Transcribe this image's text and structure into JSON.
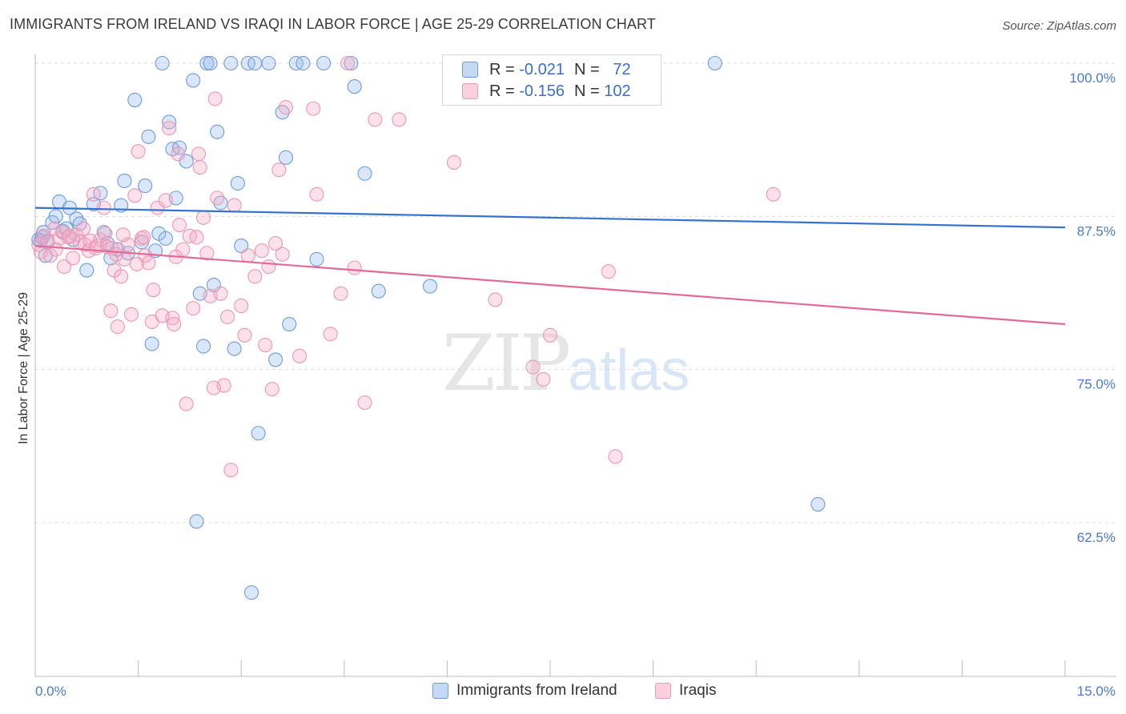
{
  "title": "IMMIGRANTS FROM IRELAND VS IRAQI IN LABOR FORCE | AGE 25-29 CORRELATION CHART",
  "source": "Source: ZipAtlas.com",
  "watermark": {
    "zip": "ZIP",
    "atlas": "atlas"
  },
  "legend": {
    "rows": [
      {
        "r_label": "R =",
        "r_value": "-0.021",
        "n_label": "N =",
        "n_value": "72"
      },
      {
        "r_label": "R =",
        "r_value": "-0.156",
        "n_label": "N =",
        "n_value": "102"
      }
    ]
  },
  "bottom_legend": [
    "Immigrants from Ireland",
    "Iraqis"
  ],
  "colors": {
    "ireland_fill": "rgba(150,185,235,0.35)",
    "ireland_stroke": "#6f9bdc",
    "ireland_line": "#3572d0",
    "iraqi_fill": "rgba(245,170,195,0.35)",
    "iraqi_stroke": "#ec97b4",
    "iraqi_line": "#e36a98",
    "grid": "#dddddd",
    "tick_text": "#4a7bd0"
  },
  "chart_data": {
    "type": "scatter",
    "title": "IMMIGRANTS FROM IRELAND VS IRAQI IN LABOR FORCE | AGE 25-29 CORRELATION CHART",
    "xlabel": "",
    "ylabel": "In Labor Force | Age 25-29",
    "xlim": [
      0,
      15
    ],
    "ylim": [
      53,
      102
    ],
    "x_tick_labels": [
      "0.0%",
      "15.0%"
    ],
    "y_ticks": [
      62.5,
      75.0,
      87.5,
      100.0
    ],
    "y_tick_labels": [
      "62.5%",
      "75.0%",
      "87.5%",
      "100.0%"
    ],
    "grid": true,
    "legend_position": "top-center",
    "series": [
      {
        "name": "Immigrants from Ireland",
        "R": -0.021,
        "N": 72,
        "trend": {
          "x": [
            0,
            15
          ],
          "y": [
            88.2,
            86.6
          ]
        },
        "points": [
          [
            0.05,
            85.6
          ],
          [
            0.08,
            85.5
          ],
          [
            0.1,
            85.8
          ],
          [
            0.12,
            86.2
          ],
          [
            0.18,
            85.4
          ],
          [
            0.25,
            87.0
          ],
          [
            0.3,
            87.5
          ],
          [
            0.35,
            88.7
          ],
          [
            0.4,
            86.3
          ],
          [
            0.45,
            86.5
          ],
          [
            0.5,
            88.2
          ],
          [
            0.55,
            85.6
          ],
          [
            0.6,
            87.3
          ],
          [
            0.65,
            86.9
          ],
          [
            0.75,
            83.1
          ],
          [
            0.85,
            88.5
          ],
          [
            0.95,
            89.4
          ],
          [
            1.0,
            86.2
          ],
          [
            1.1,
            84.1
          ],
          [
            1.2,
            84.8
          ],
          [
            1.25,
            88.4
          ],
          [
            1.3,
            90.4
          ],
          [
            1.35,
            84.5
          ],
          [
            1.45,
            97.0
          ],
          [
            1.55,
            85.4
          ],
          [
            1.6,
            90.0
          ],
          [
            1.65,
            94.0
          ],
          [
            1.7,
            77.1
          ],
          [
            1.75,
            84.7
          ],
          [
            1.8,
            86.1
          ],
          [
            1.85,
            100.0
          ],
          [
            1.9,
            85.7
          ],
          [
            1.95,
            95.2
          ],
          [
            2.0,
            93.0
          ],
          [
            2.05,
            89.0
          ],
          [
            2.1,
            93.1
          ],
          [
            2.2,
            92.0
          ],
          [
            2.3,
            98.6
          ],
          [
            2.35,
            62.6
          ],
          [
            2.4,
            81.2
          ],
          [
            2.45,
            76.9
          ],
          [
            2.5,
            100.0
          ],
          [
            2.55,
            100.0
          ],
          [
            2.6,
            81.9
          ],
          [
            2.65,
            94.4
          ],
          [
            2.7,
            88.6
          ],
          [
            2.85,
            100.0
          ],
          [
            2.9,
            76.7
          ],
          [
            2.95,
            90.2
          ],
          [
            3.0,
            85.1
          ],
          [
            3.1,
            100.0
          ],
          [
            3.15,
            56.8
          ],
          [
            3.2,
            100.0
          ],
          [
            3.25,
            69.8
          ],
          [
            3.4,
            100.0
          ],
          [
            3.5,
            75.8
          ],
          [
            3.6,
            96.0
          ],
          [
            3.65,
            92.3
          ],
          [
            3.7,
            78.7
          ],
          [
            3.8,
            100.0
          ],
          [
            3.9,
            100.0
          ],
          [
            4.1,
            84.0
          ],
          [
            4.2,
            100.0
          ],
          [
            4.6,
            100.0
          ],
          [
            4.65,
            98.1
          ],
          [
            4.8,
            91.0
          ],
          [
            5.0,
            81.4
          ],
          [
            5.75,
            81.8
          ],
          [
            9.9,
            100.0
          ],
          [
            11.4,
            64.0
          ],
          [
            0.15,
            84.3
          ],
          [
            1.05,
            85.3
          ]
        ]
      },
      {
        "name": "Iraqis",
        "R": -0.156,
        "N": 102,
        "trend": {
          "x": [
            0,
            15
          ],
          "y": [
            85.1,
            78.7
          ]
        },
        "points": [
          [
            0.05,
            85.2
          ],
          [
            0.08,
            84.6
          ],
          [
            0.12,
            85.9
          ],
          [
            0.18,
            85.5
          ],
          [
            0.22,
            84.3
          ],
          [
            0.28,
            86.5
          ],
          [
            0.35,
            85.7
          ],
          [
            0.42,
            83.4
          ],
          [
            0.48,
            85.8
          ],
          [
            0.55,
            84.1
          ],
          [
            0.6,
            86.0
          ],
          [
            0.65,
            85.4
          ],
          [
            0.72,
            85.2
          ],
          [
            0.78,
            84.7
          ],
          [
            0.85,
            89.3
          ],
          [
            0.9,
            85.1
          ],
          [
            0.95,
            85.6
          ],
          [
            1.0,
            88.2
          ],
          [
            1.05,
            85.0
          ],
          [
            1.1,
            79.8
          ],
          [
            1.15,
            83.1
          ],
          [
            1.2,
            78.5
          ],
          [
            1.25,
            82.6
          ],
          [
            1.3,
            84.0
          ],
          [
            1.35,
            85.2
          ],
          [
            1.4,
            79.5
          ],
          [
            1.45,
            89.2
          ],
          [
            1.5,
            92.8
          ],
          [
            1.55,
            85.7
          ],
          [
            1.6,
            84.3
          ],
          [
            1.65,
            83.7
          ],
          [
            1.7,
            78.9
          ],
          [
            1.72,
            81.5
          ],
          [
            1.78,
            88.2
          ],
          [
            1.85,
            79.4
          ],
          [
            1.9,
            88.8
          ],
          [
            1.95,
            94.7
          ],
          [
            2.0,
            79.2
          ],
          [
            2.02,
            78.7
          ],
          [
            2.05,
            84.2
          ],
          [
            2.08,
            92.6
          ],
          [
            2.1,
            86.8
          ],
          [
            2.15,
            84.8
          ],
          [
            2.2,
            72.2
          ],
          [
            2.25,
            85.9
          ],
          [
            2.3,
            80.0
          ],
          [
            2.35,
            85.8
          ],
          [
            2.38,
            92.6
          ],
          [
            2.4,
            91.5
          ],
          [
            2.45,
            87.4
          ],
          [
            2.5,
            84.5
          ],
          [
            2.55,
            81.0
          ],
          [
            2.6,
            73.5
          ],
          [
            2.62,
            97.1
          ],
          [
            2.65,
            89.0
          ],
          [
            2.7,
            81.2
          ],
          [
            2.75,
            73.7
          ],
          [
            2.8,
            79.3
          ],
          [
            2.85,
            66.8
          ],
          [
            2.9,
            88.4
          ],
          [
            3.0,
            80.2
          ],
          [
            3.05,
            77.8
          ],
          [
            3.1,
            84.3
          ],
          [
            3.2,
            82.6
          ],
          [
            3.3,
            84.7
          ],
          [
            3.35,
            77.0
          ],
          [
            3.4,
            83.4
          ],
          [
            3.45,
            73.4
          ],
          [
            3.5,
            85.3
          ],
          [
            3.55,
            91.3
          ],
          [
            3.6,
            84.4
          ],
          [
            3.65,
            96.4
          ],
          [
            3.85,
            76.1
          ],
          [
            4.05,
            96.3
          ],
          [
            4.1,
            89.3
          ],
          [
            4.3,
            77.9
          ],
          [
            4.45,
            81.2
          ],
          [
            4.55,
            100.0
          ],
          [
            4.65,
            83.3
          ],
          [
            4.8,
            72.3
          ],
          [
            4.95,
            95.4
          ],
          [
            5.3,
            95.4
          ],
          [
            6.1,
            91.9
          ],
          [
            6.7,
            80.7
          ],
          [
            7.25,
            75.2
          ],
          [
            7.4,
            74.2
          ],
          [
            7.5,
            77.8
          ],
          [
            8.35,
            83.0
          ],
          [
            8.45,
            67.9
          ],
          [
            10.75,
            89.3
          ],
          [
            0.3,
            84.8
          ],
          [
            0.4,
            86.2
          ],
          [
            0.5,
            85.9
          ],
          [
            0.7,
            86.5
          ],
          [
            0.8,
            85.5
          ],
          [
            0.88,
            84.9
          ],
          [
            1.02,
            86.1
          ],
          [
            1.12,
            84.9
          ],
          [
            1.18,
            84.4
          ],
          [
            1.28,
            86.0
          ],
          [
            1.48,
            83.6
          ],
          [
            1.58,
            85.8
          ]
        ]
      }
    ]
  }
}
